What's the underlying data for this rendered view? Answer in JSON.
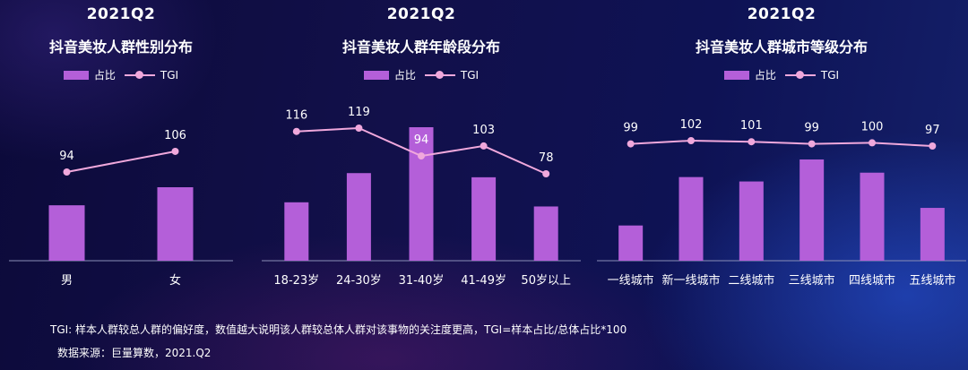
{
  "chart_data": [
    {
      "type": "bar",
      "title_year": "2021Q2",
      "title": "抖音美妆人群性别分布",
      "legend": {
        "bar": "占比",
        "line": "TGI"
      },
      "categories": [
        "男",
        "女"
      ],
      "series": [
        {
          "name": "占比",
          "type": "bar",
          "values": [
            0.43,
            0.57
          ]
        },
        {
          "name": "TGI",
          "type": "line",
          "values": [
            94,
            106
          ]
        }
      ],
      "tgi_labels": [
        "94",
        "106"
      ]
    },
    {
      "type": "bar",
      "title_year": "2021Q2",
      "title": "抖音美妆人群年龄段分布",
      "legend": {
        "bar": "占比",
        "line": "TGI"
      },
      "categories": [
        "18-23岁",
        "24-30岁",
        "31-40岁",
        "41-49岁",
        "50岁以上"
      ],
      "series": [
        {
          "name": "占比",
          "type": "bar",
          "values": [
            0.14,
            0.21,
            0.32,
            0.2,
            0.13
          ]
        },
        {
          "name": "TGI",
          "type": "line",
          "values": [
            116,
            119,
            94,
            103,
            78
          ]
        }
      ],
      "tgi_labels": [
        "116",
        "119",
        "94",
        "103",
        "78"
      ]
    },
    {
      "type": "bar",
      "title_year": "2021Q2",
      "title": "抖音美妆人群城市等级分布",
      "legend": {
        "bar": "占比",
        "line": "TGI"
      },
      "categories": [
        "一线城市",
        "新一线城市",
        "二线城市",
        "三线城市",
        "四线城市",
        "五线城市"
      ],
      "series": [
        {
          "name": "占比",
          "type": "bar",
          "values": [
            0.08,
            0.19,
            0.18,
            0.23,
            0.2,
            0.12
          ]
        },
        {
          "name": "TGI",
          "type": "line",
          "values": [
            99,
            102,
            101,
            99,
            100,
            97
          ]
        }
      ],
      "tgi_labels": [
        "99",
        "102",
        "101",
        "99",
        "100",
        "97"
      ]
    }
  ],
  "colors": {
    "bar": "#b45fd9",
    "line": "#f0a8dc",
    "axis": "#8a8fb8",
    "text": "#ffffff"
  },
  "footnote": {
    "tgi_note": "TGI: 样本人群较总人群的偏好度，数值越大说明该人群较总体人群对该事物的关注度更高，TGI=样本占比/总体占比*100",
    "source": "数据来源：巨量算数，2021.Q2"
  }
}
